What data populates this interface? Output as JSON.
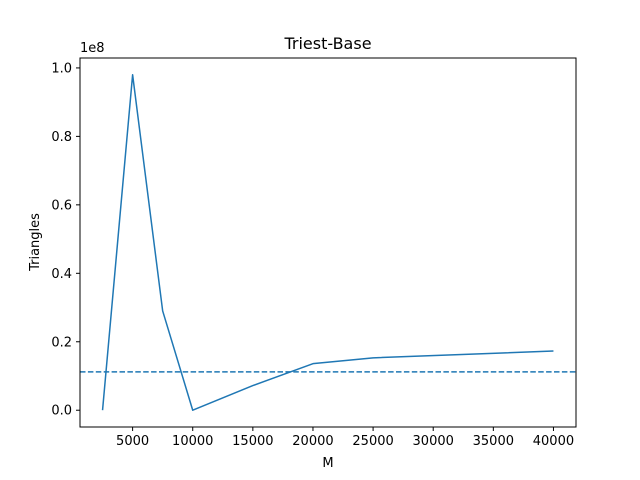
{
  "chart_data": {
    "type": "line",
    "title": "Triest-Base",
    "xlabel": "M",
    "ylabel": "Triangles",
    "y_offset_label": "1e8",
    "x_ticks": [
      5000,
      10000,
      15000,
      20000,
      25000,
      30000,
      35000,
      40000
    ],
    "x_tick_labels": [
      "5000",
      "10000",
      "15000",
      "20000",
      "25000",
      "30000",
      "35000",
      "40000"
    ],
    "y_ticks": [
      0,
      20000000,
      40000000,
      60000000,
      80000000,
      100000000
    ],
    "y_tick_labels": [
      "0.0",
      "0.2",
      "0.4",
      "0.6",
      "0.8",
      "1.0"
    ],
    "xlim": [
      625,
      41875
    ],
    "ylim": [
      -4900000,
      102900000
    ],
    "grid": false,
    "series": [
      {
        "style": "solid",
        "color": "#1f77b4",
        "x": [
          2500,
          5000,
          7500,
          10000,
          15000,
          20000,
          25000,
          40000
        ],
        "y": [
          0,
          98000000,
          29000000,
          0,
          7200000,
          13600000,
          15300000,
          17300000
        ]
      }
    ],
    "hlines": [
      {
        "style": "dashed",
        "color": "#1f77b4",
        "y": 11200000
      }
    ]
  }
}
